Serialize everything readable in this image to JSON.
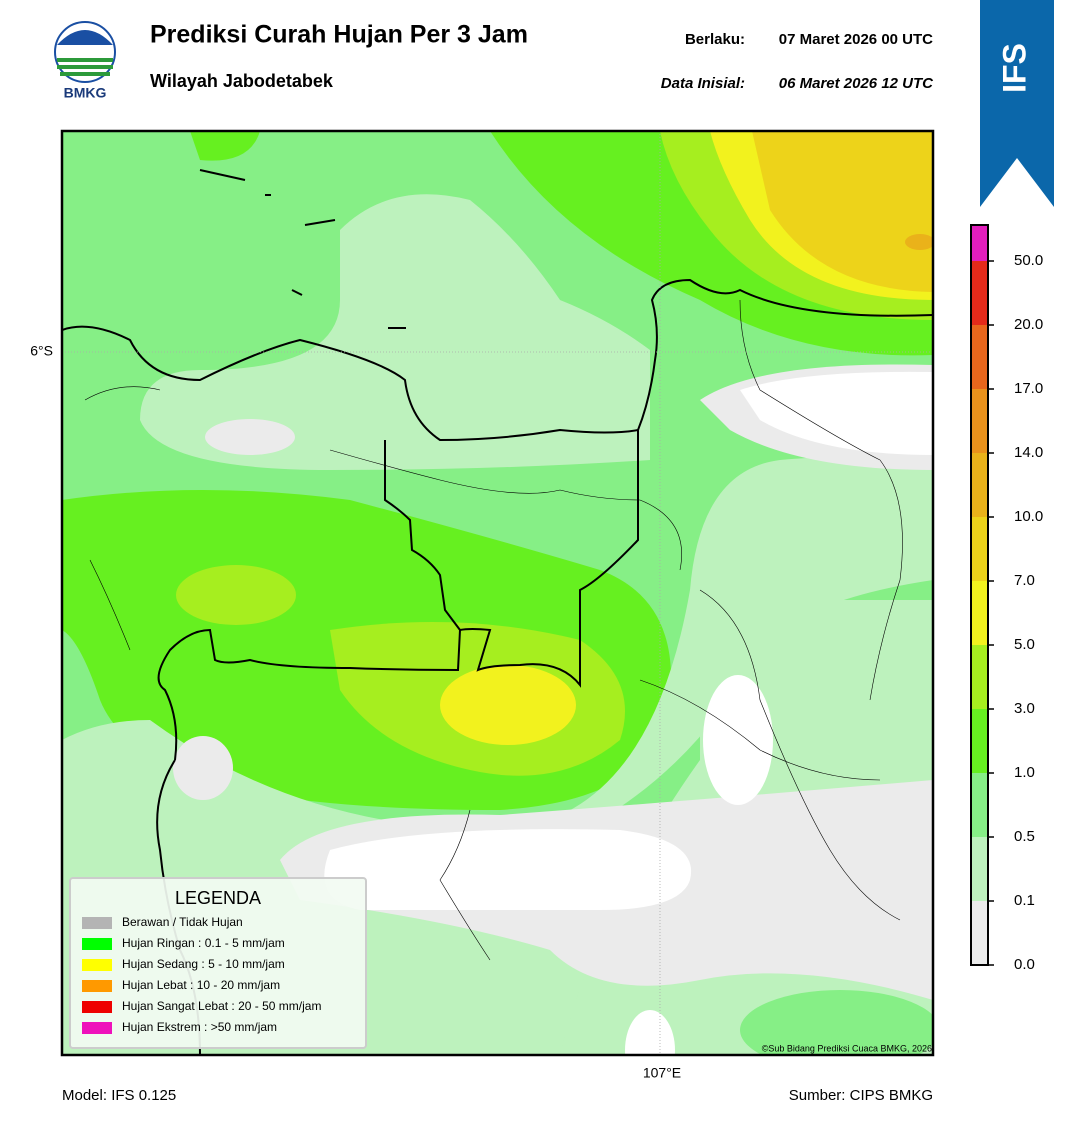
{
  "header": {
    "logo_text": "BMKG",
    "title": "Prediksi Curah Hujan Per 3 Jam",
    "subtitle": "Wilayah Jabodetabek",
    "valid_label": "Berlaku:",
    "valid_value": "07 Maret 2026 00 UTC",
    "init_label": "Data Inisial:",
    "init_value": "06 Maret 2026 12 UTC",
    "badge": "IFS"
  },
  "map": {
    "lat_label": "6°S",
    "lon_label": "107°E",
    "copyright": "©Sub Bidang Prediksi Cuaca BMKG, 2026"
  },
  "legend": {
    "title": "LEGENDA",
    "items": [
      {
        "label": "Berawan / Tidak Hujan",
        "color": "#b4b4b4"
      },
      {
        "label": "Hujan Ringan : 0.1 - 5 mm/jam",
        "color": "#00ff00"
      },
      {
        "label": "Hujan Sedang : 5 - 10 mm/jam",
        "color": "#ffff00"
      },
      {
        "label": "Hujan Lebat : 10 - 20 mm/jam",
        "color": "#ff9900"
      },
      {
        "label": "Hujan Sangat Lebat : 20 - 50 mm/jam",
        "color": "#ee0000"
      },
      {
        "label": "Hujan Ekstrem : >50 mm/jam",
        "color": "#ee11bb"
      }
    ]
  },
  "colorbar": {
    "ticks": [
      "0.0",
      "0.1",
      "0.5",
      "1.0",
      "3.0",
      "5.0",
      "7.0",
      "10.0",
      "14.0",
      "17.0",
      "20.0",
      "50.0"
    ],
    "colors": [
      "#ebebeb",
      "#bdf2bd",
      "#86ef86",
      "#66f020",
      "#a6ee1f",
      "#f2f21e",
      "#edd31a",
      "#eab21a",
      "#ea921c",
      "#e8661c",
      "#e42a1a",
      "#e21ebc"
    ]
  },
  "footer": {
    "model": "Model: IFS 0.125",
    "source": "Sumber: CIPS BMKG"
  }
}
